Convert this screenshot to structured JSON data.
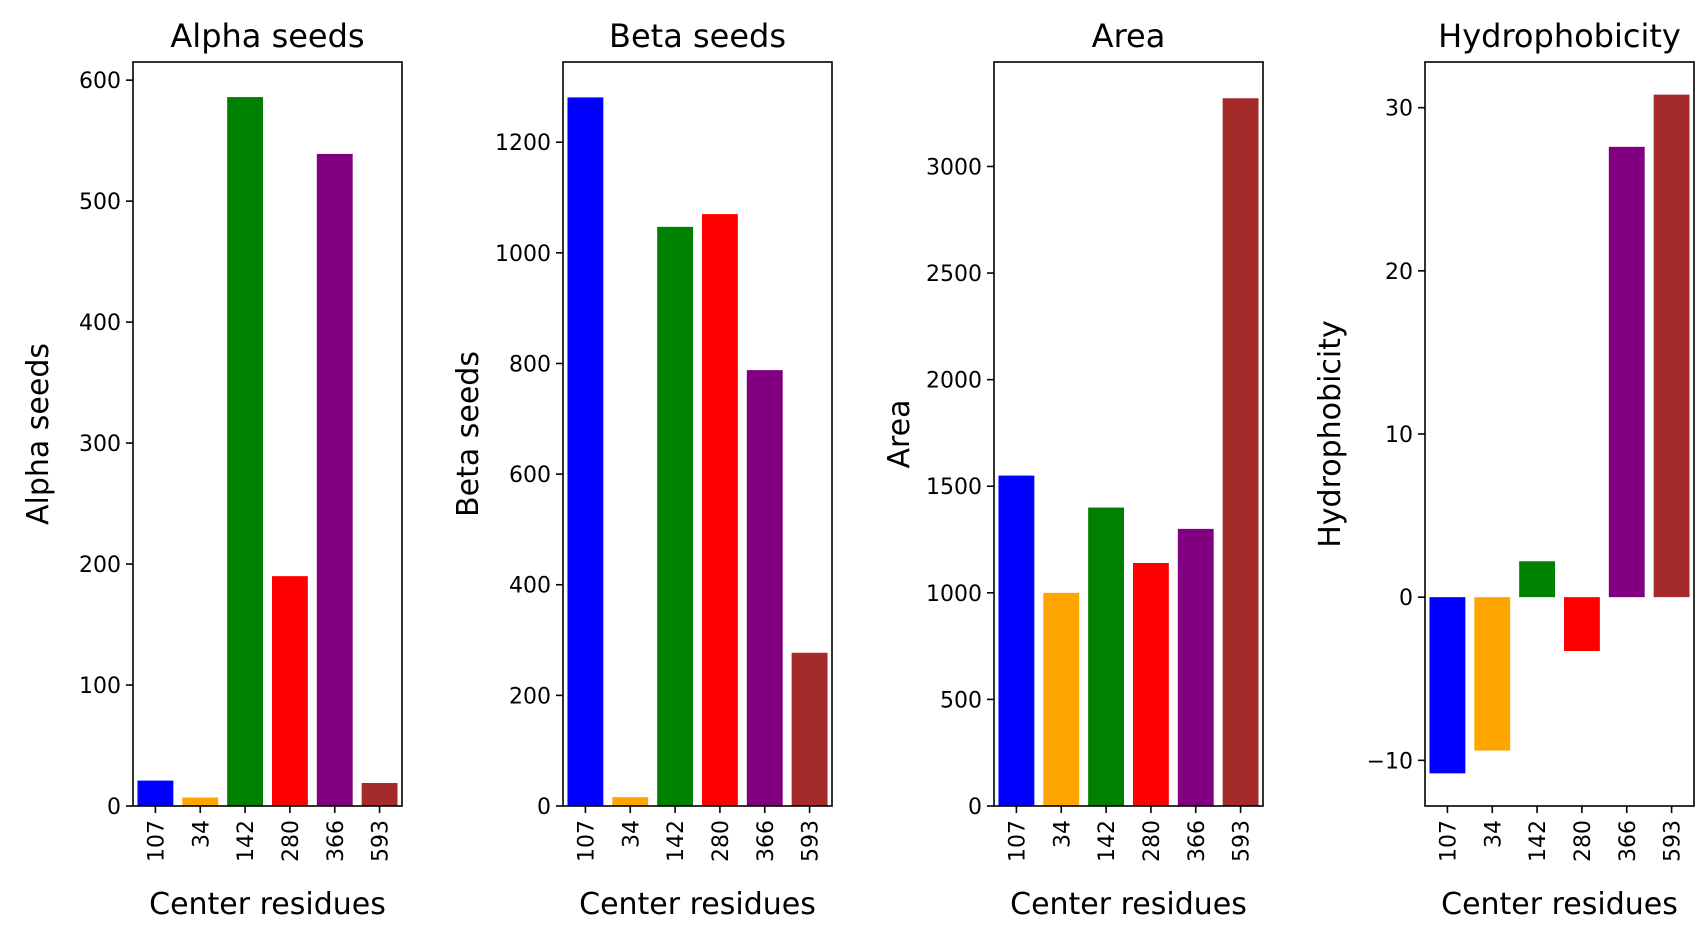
{
  "chart_data": [
    {
      "type": "bar",
      "title": "Alpha seeds",
      "xlabel": "Center residues",
      "ylabel": "Alpha seeds",
      "categories": [
        "107",
        "34",
        "142",
        "280",
        "366",
        "593"
      ],
      "values": [
        21,
        7,
        586,
        190,
        539,
        19
      ],
      "colors": [
        "#0000ff",
        "#ffa500",
        "#008000",
        "#ff0000",
        "#800080",
        "#a52a2a"
      ],
      "ylim": [
        0,
        615
      ],
      "yticks": [
        0,
        100,
        200,
        300,
        400,
        500,
        600
      ],
      "grid": false
    },
    {
      "type": "bar",
      "title": "Beta seeds",
      "xlabel": "Center residues",
      "ylabel": "Beta seeds",
      "categories": [
        "107",
        "34",
        "142",
        "280",
        "366",
        "593"
      ],
      "values": [
        1281,
        16,
        1047,
        1070,
        788,
        277
      ],
      "colors": [
        "#0000ff",
        "#ffa500",
        "#008000",
        "#ff0000",
        "#800080",
        "#a52a2a"
      ],
      "ylim": [
        0,
        1345
      ],
      "yticks": [
        0,
        200,
        400,
        600,
        800,
        1000,
        1200
      ],
      "grid": false
    },
    {
      "type": "bar",
      "title": "Area",
      "xlabel": "Center residues",
      "ylabel": "Area",
      "categories": [
        "107",
        "34",
        "142",
        "280",
        "366",
        "593"
      ],
      "values": [
        1550,
        1000,
        1400,
        1140,
        1300,
        3320
      ],
      "colors": [
        "#0000ff",
        "#ffa500",
        "#008000",
        "#ff0000",
        "#800080",
        "#a52a2a"
      ],
      "ylim": [
        0,
        3490
      ],
      "yticks": [
        0,
        500,
        1000,
        1500,
        2000,
        2500,
        3000
      ],
      "grid": false
    },
    {
      "type": "bar",
      "title": "Hydrophobicity",
      "xlabel": "Center residues",
      "ylabel": "Hydrophobicity",
      "categories": [
        "107",
        "34",
        "142",
        "280",
        "366",
        "593"
      ],
      "values": [
        -10.8,
        -9.4,
        2.2,
        -3.3,
        27.6,
        30.8
      ],
      "colors": [
        "#0000ff",
        "#ffa500",
        "#008000",
        "#ff0000",
        "#800080",
        "#a52a2a"
      ],
      "ylim": [
        -12.8,
        32.8
      ],
      "yticks": [
        -10,
        0,
        10,
        20,
        30
      ],
      "yticklabels": [
        "−10",
        "0",
        "10",
        "20",
        "30"
      ],
      "grid": false
    }
  ]
}
